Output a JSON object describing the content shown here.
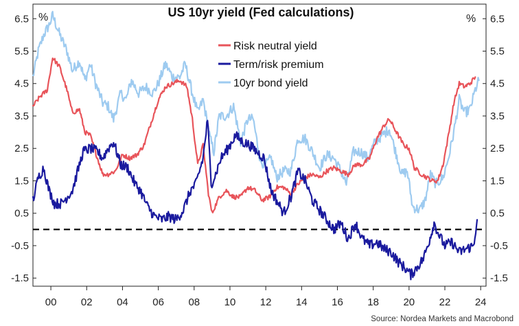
{
  "chart_data": {
    "type": "line",
    "title": "US 10yr yield (Fed calculations)",
    "left_unit": "%",
    "right_unit": "%",
    "source": "Source: Nordea Markets and Macrobond",
    "xlim": [
      1999.0,
      2024.3
    ],
    "ylim": [
      -1.75,
      6.95
    ],
    "x_ticks": [
      {
        "value": 2000,
        "label": "00"
      },
      {
        "value": 2002,
        "label": "02"
      },
      {
        "value": 2004,
        "label": "04"
      },
      {
        "value": 2006,
        "label": "06"
      },
      {
        "value": 2008,
        "label": "08"
      },
      {
        "value": 2010,
        "label": "10"
      },
      {
        "value": 2012,
        "label": "12"
      },
      {
        "value": 2014,
        "label": "14"
      },
      {
        "value": 2016,
        "label": "16"
      },
      {
        "value": 2018,
        "label": "18"
      },
      {
        "value": 2020,
        "label": "20"
      },
      {
        "value": 2022,
        "label": "22"
      },
      {
        "value": 2024,
        "label": "24"
      }
    ],
    "y_ticks": [
      {
        "value": 6.5,
        "label": "6.5"
      },
      {
        "value": 5.5,
        "label": "5.5"
      },
      {
        "value": 4.5,
        "label": "4.5"
      },
      {
        "value": 3.5,
        "label": "3.5"
      },
      {
        "value": 2.5,
        "label": "2.5"
      },
      {
        "value": 1.5,
        "label": "1.5"
      },
      {
        "value": 0.5,
        "label": "0.5"
      },
      {
        "value": -0.5,
        "label": "-0.5"
      },
      {
        "value": -1.5,
        "label": "-1.5"
      }
    ],
    "reference_line": {
      "y": 0,
      "style": "dashed",
      "color": "#000000"
    },
    "legend_position": "top-center",
    "series": [
      {
        "name": "Risk neutral yield",
        "color": "#e8545a",
        "points": [
          [
            1999.0,
            3.8
          ],
          [
            1999.4,
            4.1
          ],
          [
            1999.8,
            4.3
          ],
          [
            2000.1,
            5.3
          ],
          [
            2000.5,
            5.0
          ],
          [
            2000.9,
            4.3
          ],
          [
            2001.2,
            3.6
          ],
          [
            2001.6,
            3.7
          ],
          [
            2001.9,
            3.0
          ],
          [
            2002.2,
            2.9
          ],
          [
            2002.6,
            2.2
          ],
          [
            2002.9,
            1.7
          ],
          [
            2003.2,
            1.7
          ],
          [
            2003.6,
            1.8
          ],
          [
            2004.0,
            2.3
          ],
          [
            2004.4,
            2.2
          ],
          [
            2004.8,
            2.3
          ],
          [
            2005.2,
            2.6
          ],
          [
            2005.6,
            3.3
          ],
          [
            2006.0,
            4.0
          ],
          [
            2006.4,
            4.4
          ],
          [
            2006.8,
            4.5
          ],
          [
            2007.2,
            4.6
          ],
          [
            2007.6,
            4.4
          ],
          [
            2007.9,
            3.4
          ],
          [
            2008.2,
            2.0
          ],
          [
            2008.5,
            2.6
          ],
          [
            2008.8,
            1.1
          ],
          [
            2009.0,
            0.5
          ],
          [
            2009.4,
            1.0
          ],
          [
            2009.8,
            1.2
          ],
          [
            2010.2,
            1.0
          ],
          [
            2010.6,
            1.0
          ],
          [
            2011.0,
            1.3
          ],
          [
            2011.4,
            1.2
          ],
          [
            2011.8,
            0.9
          ],
          [
            2012.2,
            1.0
          ],
          [
            2012.6,
            1.3
          ],
          [
            2013.0,
            1.3
          ],
          [
            2013.4,
            1.1
          ],
          [
            2013.8,
            1.4
          ],
          [
            2014.2,
            1.6
          ],
          [
            2014.6,
            1.7
          ],
          [
            2015.0,
            1.6
          ],
          [
            2015.4,
            1.8
          ],
          [
            2015.8,
            1.9
          ],
          [
            2016.2,
            1.8
          ],
          [
            2016.6,
            1.7
          ],
          [
            2017.0,
            2.0
          ],
          [
            2017.4,
            2.0
          ],
          [
            2017.8,
            2.2
          ],
          [
            2018.2,
            2.8
          ],
          [
            2018.6,
            3.2
          ],
          [
            2018.9,
            3.4
          ],
          [
            2019.3,
            3.0
          ],
          [
            2019.7,
            2.6
          ],
          [
            2020.0,
            2.5
          ],
          [
            2020.3,
            1.9
          ],
          [
            2020.7,
            1.7
          ],
          [
            2021.0,
            1.6
          ],
          [
            2021.3,
            1.5
          ],
          [
            2021.6,
            1.5
          ],
          [
            2021.9,
            2.0
          ],
          [
            2022.2,
            2.9
          ],
          [
            2022.5,
            3.9
          ],
          [
            2022.8,
            4.5
          ],
          [
            2023.1,
            4.4
          ],
          [
            2023.4,
            4.5
          ],
          [
            2023.7,
            4.7
          ]
        ]
      },
      {
        "name": "Term/risk premium",
        "color": "#1a1a9e",
        "points": [
          [
            1999.0,
            0.9
          ],
          [
            1999.3,
            1.6
          ],
          [
            1999.6,
            1.9
          ],
          [
            1999.9,
            1.2
          ],
          [
            2000.2,
            0.8
          ],
          [
            2000.6,
            0.8
          ],
          [
            2000.9,
            1.0
          ],
          [
            2001.2,
            1.2
          ],
          [
            2001.5,
            1.8
          ],
          [
            2001.8,
            2.4
          ],
          [
            2002.2,
            2.5
          ],
          [
            2002.6,
            2.4
          ],
          [
            2002.9,
            2.2
          ],
          [
            2003.2,
            2.5
          ],
          [
            2003.5,
            2.7
          ],
          [
            2003.9,
            2.0
          ],
          [
            2004.3,
            1.9
          ],
          [
            2004.7,
            1.4
          ],
          [
            2005.0,
            1.2
          ],
          [
            2005.4,
            0.7
          ],
          [
            2005.8,
            0.4
          ],
          [
            2006.2,
            0.3
          ],
          [
            2006.6,
            0.4
          ],
          [
            2007.0,
            0.3
          ],
          [
            2007.4,
            0.6
          ],
          [
            2007.8,
            1.2
          ],
          [
            2008.1,
            1.4
          ],
          [
            2008.5,
            2.2
          ],
          [
            2008.75,
            3.4
          ],
          [
            2008.95,
            1.4
          ],
          [
            2009.2,
            1.7
          ],
          [
            2009.5,
            2.2
          ],
          [
            2009.9,
            2.5
          ],
          [
            2010.3,
            2.9
          ],
          [
            2010.7,
            2.7
          ],
          [
            2011.1,
            2.6
          ],
          [
            2011.5,
            2.4
          ],
          [
            2011.9,
            2.2
          ],
          [
            2012.3,
            1.2
          ],
          [
            2012.7,
            0.8
          ],
          [
            2013.0,
            0.5
          ],
          [
            2013.4,
            1.0
          ],
          [
            2013.8,
            1.8
          ],
          [
            2014.2,
            1.5
          ],
          [
            2014.6,
            0.9
          ],
          [
            2015.0,
            0.6
          ],
          [
            2015.4,
            0.3
          ],
          [
            2015.8,
            0.0
          ],
          [
            2016.2,
            0.2
          ],
          [
            2016.6,
            -0.3
          ],
          [
            2017.0,
            0.2
          ],
          [
            2017.4,
            -0.3
          ],
          [
            2017.8,
            -0.5
          ],
          [
            2018.2,
            -0.4
          ],
          [
            2018.6,
            -0.6
          ],
          [
            2019.0,
            -0.7
          ],
          [
            2019.4,
            -1.0
          ],
          [
            2019.8,
            -1.2
          ],
          [
            2020.1,
            -1.4
          ],
          [
            2020.4,
            -1.2
          ],
          [
            2020.8,
            -0.9
          ],
          [
            2021.1,
            -0.4
          ],
          [
            2021.4,
            0.2
          ],
          [
            2021.7,
            -0.2
          ],
          [
            2022.0,
            -0.5
          ],
          [
            2022.4,
            -0.4
          ],
          [
            2022.8,
            -0.7
          ],
          [
            2023.2,
            -0.6
          ],
          [
            2023.6,
            -0.5
          ],
          [
            2023.8,
            0.3
          ]
        ]
      },
      {
        "name": "10yr bond yield",
        "color": "#9ecbf0",
        "points": [
          [
            1999.0,
            4.7
          ],
          [
            1999.3,
            5.5
          ],
          [
            1999.6,
            6.0
          ],
          [
            1999.9,
            6.3
          ],
          [
            2000.1,
            6.6
          ],
          [
            2000.5,
            6.0
          ],
          [
            2000.9,
            5.5
          ],
          [
            2001.2,
            4.9
          ],
          [
            2001.6,
            5.2
          ],
          [
            2001.9,
            4.6
          ],
          [
            2002.2,
            5.1
          ],
          [
            2002.5,
            4.5
          ],
          [
            2002.9,
            3.9
          ],
          [
            2003.2,
            3.8
          ],
          [
            2003.5,
            3.4
          ],
          [
            2003.9,
            4.2
          ],
          [
            2004.2,
            4.0
          ],
          [
            2004.5,
            4.6
          ],
          [
            2004.9,
            4.2
          ],
          [
            2005.3,
            4.4
          ],
          [
            2005.7,
            4.2
          ],
          [
            2006.0,
            4.5
          ],
          [
            2006.4,
            5.1
          ],
          [
            2006.8,
            4.7
          ],
          [
            2007.2,
            4.7
          ],
          [
            2007.5,
            5.1
          ],
          [
            2007.9,
            4.2
          ],
          [
            2008.2,
            3.6
          ],
          [
            2008.5,
            4.0
          ],
          [
            2008.9,
            2.8
          ],
          [
            2009.1,
            2.4
          ],
          [
            2009.4,
            3.5
          ],
          [
            2009.8,
            3.5
          ],
          [
            2010.2,
            3.8
          ],
          [
            2010.6,
            2.7
          ],
          [
            2011.0,
            3.4
          ],
          [
            2011.3,
            3.4
          ],
          [
            2011.7,
            2.1
          ],
          [
            2012.0,
            2.0
          ],
          [
            2012.3,
            2.2
          ],
          [
            2012.6,
            1.6
          ],
          [
            2013.0,
            1.8
          ],
          [
            2013.4,
            1.8
          ],
          [
            2013.8,
            2.8
          ],
          [
            2014.2,
            2.8
          ],
          [
            2014.6,
            2.4
          ],
          [
            2015.0,
            1.9
          ],
          [
            2015.4,
            2.3
          ],
          [
            2015.8,
            2.2
          ],
          [
            2016.2,
            1.8
          ],
          [
            2016.5,
            1.4
          ],
          [
            2016.9,
            2.4
          ],
          [
            2017.3,
            2.4
          ],
          [
            2017.7,
            2.2
          ],
          [
            2018.1,
            2.7
          ],
          [
            2018.5,
            2.9
          ],
          [
            2018.9,
            3.1
          ],
          [
            2019.2,
            2.5
          ],
          [
            2019.6,
            1.7
          ],
          [
            2019.9,
            1.8
          ],
          [
            2020.2,
            0.7
          ],
          [
            2020.6,
            0.6
          ],
          [
            2020.9,
            0.9
          ],
          [
            2021.2,
            1.7
          ],
          [
            2021.5,
            1.4
          ],
          [
            2021.9,
            1.6
          ],
          [
            2022.2,
            2.2
          ],
          [
            2022.5,
            3.0
          ],
          [
            2022.8,
            4.0
          ],
          [
            2023.1,
            3.6
          ],
          [
            2023.4,
            3.7
          ],
          [
            2023.7,
            4.3
          ],
          [
            2023.9,
            4.6
          ]
        ]
      }
    ]
  }
}
